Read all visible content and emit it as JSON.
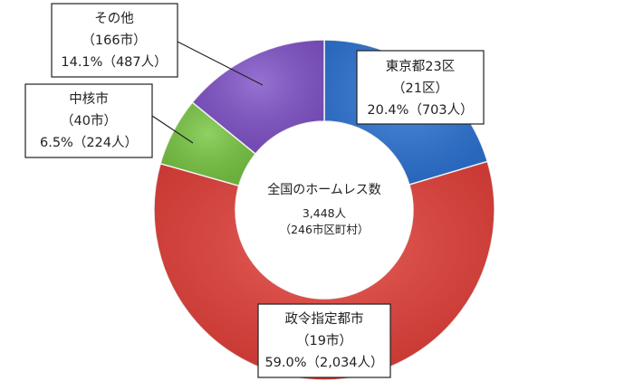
{
  "chart_data": {
    "type": "pie",
    "style": "donut",
    "center": {
      "title": "全国のホームレス数",
      "total": "3,448人",
      "municipalities": "（246市区町村）"
    },
    "slices": [
      {
        "name": "東京都23区",
        "count_label": "（21区）",
        "value_label": "20.4%（703人）",
        "percent": 20.4,
        "value": 703,
        "color": "#2E75D6"
      },
      {
        "name": "政令指定都市",
        "count_label": "（19市）",
        "value_label": "59.0%（2,034人）",
        "percent": 59.0,
        "value": 2034,
        "color": "#E5413B"
      },
      {
        "name": "中核市",
        "count_label": "（40市）",
        "value_label": "6.5%（224人）",
        "percent": 6.5,
        "value": 224,
        "color": "#79C743"
      },
      {
        "name": "その他",
        "count_label": "（166市）",
        "value_label": "14.1%（487人）",
        "percent": 14.1,
        "value": 487,
        "color": "#8153C9"
      }
    ]
  }
}
